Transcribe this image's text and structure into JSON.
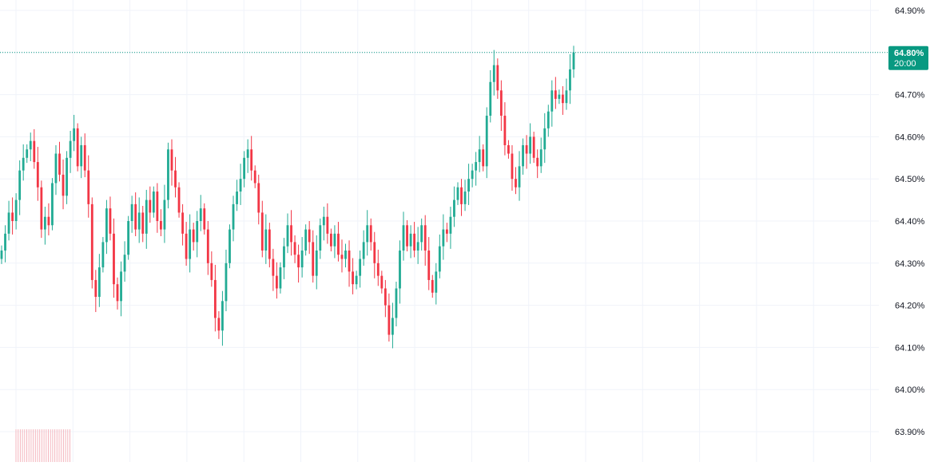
{
  "chart_data": {
    "type": "candlestick",
    "title": "",
    "xlabel": "",
    "ylabel": "",
    "ylim": [
      63.855,
      64.94
    ],
    "y_ticks": [
      "64.90%",
      "64.80%",
      "64.70%",
      "64.60%",
      "64.50%",
      "64.40%",
      "64.30%",
      "64.20%",
      "64.10%",
      "64.00%",
      "63.90%"
    ],
    "y_tick_values": [
      64.9,
      64.8,
      64.7,
      64.6,
      64.5,
      64.4,
      64.3,
      64.2,
      64.1,
      64.0,
      63.9
    ],
    "grid": true,
    "legend": "none",
    "last_price": {
      "value": 64.8,
      "label": "64.80%",
      "time": "20:00"
    },
    "colors": {
      "up": "#22ab94",
      "down": "#f23645",
      "last_price": "#089981",
      "grid": "#f0f3fa",
      "axis_text": "#131722"
    },
    "closes": [
      64.33,
      64.37,
      64.42,
      64.4,
      64.45,
      64.52,
      64.55,
      64.57,
      64.59,
      64.54,
      64.48,
      64.38,
      64.41,
      64.39,
      64.49,
      64.56,
      64.51,
      64.46,
      64.55,
      64.59,
      64.62,
      64.53,
      64.58,
      64.52,
      64.44,
      64.26,
      64.22,
      64.29,
      64.35,
      64.43,
      64.37,
      64.25,
      64.21,
      64.28,
      64.32,
      64.4,
      64.44,
      64.38,
      64.42,
      64.37,
      64.45,
      64.42,
      64.47,
      64.4,
      64.38,
      64.45,
      64.57,
      64.52,
      64.48,
      64.42,
      64.37,
      64.31,
      64.38,
      64.35,
      64.4,
      64.43,
      64.38,
      64.3,
      64.26,
      64.17,
      64.14,
      64.21,
      64.3,
      64.38,
      64.44,
      64.47,
      64.5,
      64.55,
      64.57,
      64.52,
      64.49,
      64.42,
      64.33,
      64.38,
      64.31,
      64.27,
      64.24,
      64.29,
      64.34,
      64.39,
      64.35,
      64.32,
      64.29,
      64.33,
      64.38,
      64.35,
      64.27,
      64.33,
      64.39,
      64.41,
      64.37,
      64.34,
      64.37,
      64.32,
      64.31,
      64.33,
      64.28,
      64.25,
      64.27,
      64.31,
      64.35,
      64.39,
      64.35,
      64.3,
      64.27,
      64.24,
      64.2,
      64.13,
      64.17,
      64.24,
      64.33,
      64.39,
      64.34,
      64.37,
      64.33,
      64.35,
      64.39,
      64.33,
      64.26,
      64.23,
      64.28,
      64.34,
      64.38,
      64.37,
      64.41,
      64.45,
      64.48,
      64.44,
      64.47,
      64.5,
      64.52,
      64.54,
      64.57,
      64.53,
      64.65,
      64.73,
      64.77,
      64.71,
      64.65,
      64.58,
      64.56,
      64.5,
      64.48,
      64.53,
      64.58,
      64.56,
      64.6,
      64.55,
      64.53,
      64.57,
      64.62,
      64.66,
      64.71,
      64.69,
      64.7,
      64.68,
      64.71,
      64.76,
      64.8
    ]
  }
}
